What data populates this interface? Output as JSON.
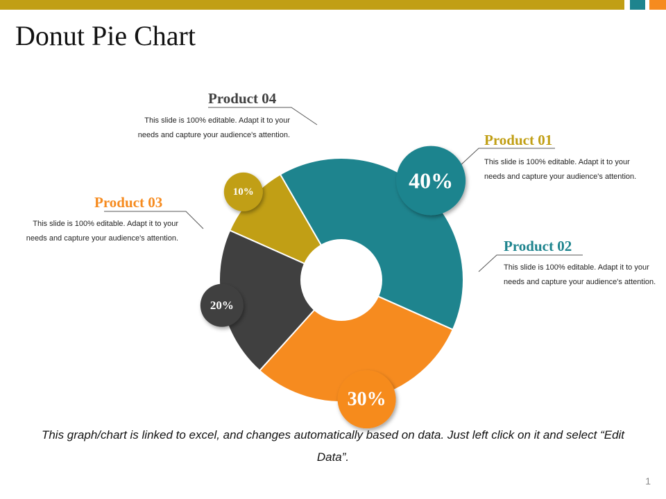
{
  "header": {
    "title": "Donut Pie Chart",
    "colors": {
      "gold": "#c19f15",
      "teal": "#1e848e",
      "orange": "#f68b1f"
    }
  },
  "chart_data": {
    "type": "pie",
    "categories": [
      "Product 01",
      "Product 02",
      "Product 03",
      "Product 04"
    ],
    "values": [
      10,
      40,
      30,
      20
    ],
    "data_labels": [
      "10%",
      "40%",
      "30%",
      "20%"
    ],
    "colors": [
      "#c19f15",
      "#1e848e",
      "#f68b1f",
      "#404040"
    ],
    "title": "",
    "legend": "none"
  },
  "products": [
    {
      "name": "Product 01",
      "description": "This slide is 100% editable. Adapt it to your needs and capture your audience's attention."
    },
    {
      "name": "Product 02",
      "description": "This slide is 100% editable. Adapt it to your needs and capture your audience's attention."
    },
    {
      "name": "Product 03",
      "description": "This slide is 100% editable. Adapt it to your needs and capture your audience's attention."
    },
    {
      "name": "Product 04",
      "description": "This slide is 100% editable. Adapt it to your needs and capture your audience's attention."
    }
  ],
  "footer": {
    "note": "This graph/chart is linked to excel, and changes automatically based on data. Just left click on it and select “Edit Data”."
  },
  "page_number": "1"
}
